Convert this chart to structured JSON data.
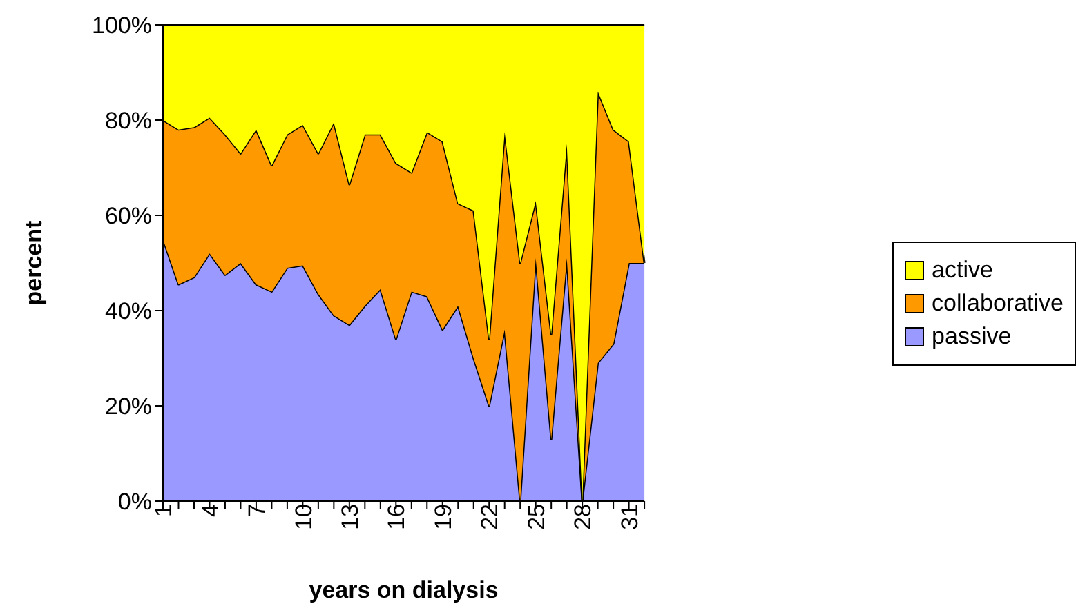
{
  "chart_data": {
    "type": "area",
    "stacked": true,
    "xlabel": "years on dialysis",
    "ylabel": "percent",
    "categories": [
      "1",
      null,
      null,
      "4",
      null,
      null,
      "7",
      null,
      null,
      "10",
      null,
      null,
      "13",
      null,
      null,
      "16",
      null,
      null,
      "19",
      null,
      null,
      "22",
      null,
      null,
      "25",
      null,
      null,
      "28",
      null,
      null,
      "31",
      null
    ],
    "series": [
      {
        "name": "passive",
        "color": "#9999ff",
        "values": [
          55,
          45.5,
          47,
          52,
          47.5,
          50,
          45.5,
          44,
          49,
          49.5,
          43.5,
          39,
          37,
          41,
          44.5,
          34,
          44,
          43,
          36,
          41,
          30,
          20,
          36,
          0,
          51,
          13,
          51,
          0,
          29,
          33,
          50,
          50
        ]
      },
      {
        "name": "collaborative",
        "color": "#ff9900",
        "values": [
          25,
          32.5,
          31.5,
          28.5,
          29.5,
          23,
          32.5,
          26.5,
          28,
          29.5,
          29.5,
          40.5,
          29.5,
          36,
          32.5,
          37,
          25,
          34.5,
          39.5,
          21.5,
          31,
          14,
          41.5,
          50,
          12,
          22,
          24,
          0,
          57,
          45,
          25.5,
          0
        ]
      },
      {
        "name": "active",
        "color": "#ffff00",
        "values": [
          20,
          22,
          21.5,
          19.5,
          23,
          27,
          22,
          29.5,
          23,
          21,
          27,
          20.5,
          33.5,
          23,
          23,
          29,
          31,
          22.5,
          24.5,
          37.5,
          39,
          66,
          22.5,
          50,
          37,
          65,
          25,
          100,
          14,
          22,
          24.5,
          50
        ]
      }
    ],
    "ylim": [
      0,
      100
    ],
    "yticks": [
      {
        "value": 0,
        "label": "0%"
      },
      {
        "value": 20,
        "label": "20%"
      },
      {
        "value": 40,
        "label": "40%"
      },
      {
        "value": 60,
        "label": "60%"
      },
      {
        "value": 80,
        "label": "80%"
      },
      {
        "value": 100,
        "label": "100%"
      }
    ],
    "grid": false,
    "legend": "right"
  }
}
